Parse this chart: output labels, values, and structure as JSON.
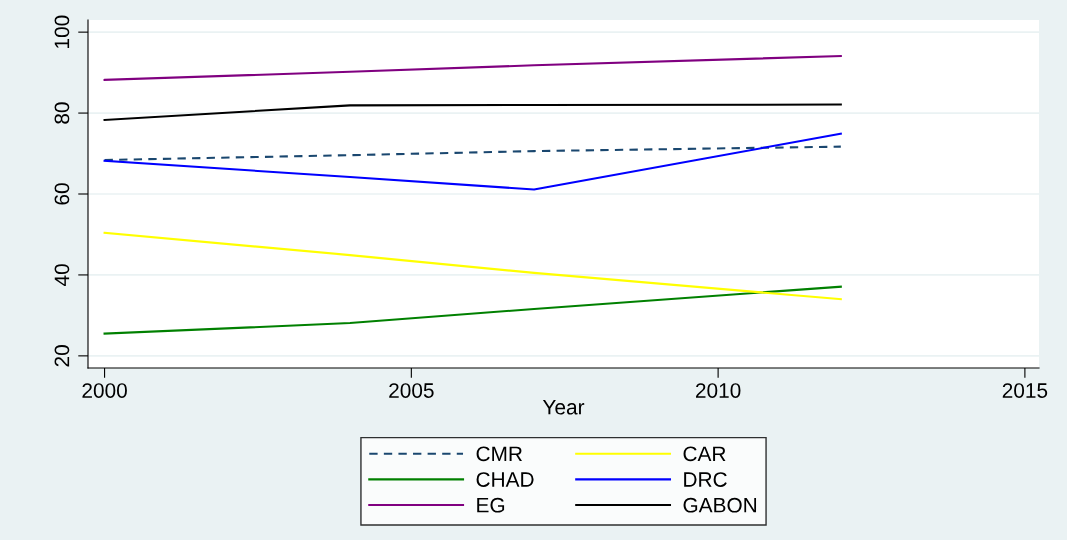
{
  "chart_data": {
    "type": "line",
    "xlabel": "Year",
    "x": [
      2000,
      2004,
      2007,
      2012
    ],
    "series": [
      {
        "name": "CMR",
        "color": "#1a476f",
        "line_style": "dashed",
        "values": [
          68.4,
          69.6,
          70.6,
          71.7
        ]
      },
      {
        "name": "CHAD",
        "color": "#008000",
        "values": [
          25.5,
          28.1,
          31.6,
          37.1
        ]
      },
      {
        "name": "EG",
        "color": "#800080",
        "values": [
          88.2,
          90.2,
          91.8,
          94.1
        ]
      },
      {
        "name": "CAR",
        "color": "#ffff00",
        "values": [
          50.4,
          44.9,
          40.5,
          34.0
        ]
      },
      {
        "name": "DRC",
        "color": "#0000ff",
        "values": [
          68.2,
          64.2,
          61.1,
          74.9
        ]
      },
      {
        "name": "GABON",
        "color": "#000000",
        "values": [
          78.3,
          81.9,
          82.0,
          82.1
        ]
      }
    ],
    "xlim": [
      1999.73,
      2015.23
    ],
    "xticks": [
      2000,
      2005,
      2010,
      2015
    ],
    "ylim": [
      17,
      103
    ],
    "yticks": [
      20,
      40,
      60,
      80,
      100
    ],
    "grid": "y",
    "legend": "bottom",
    "line_style": "solid"
  }
}
